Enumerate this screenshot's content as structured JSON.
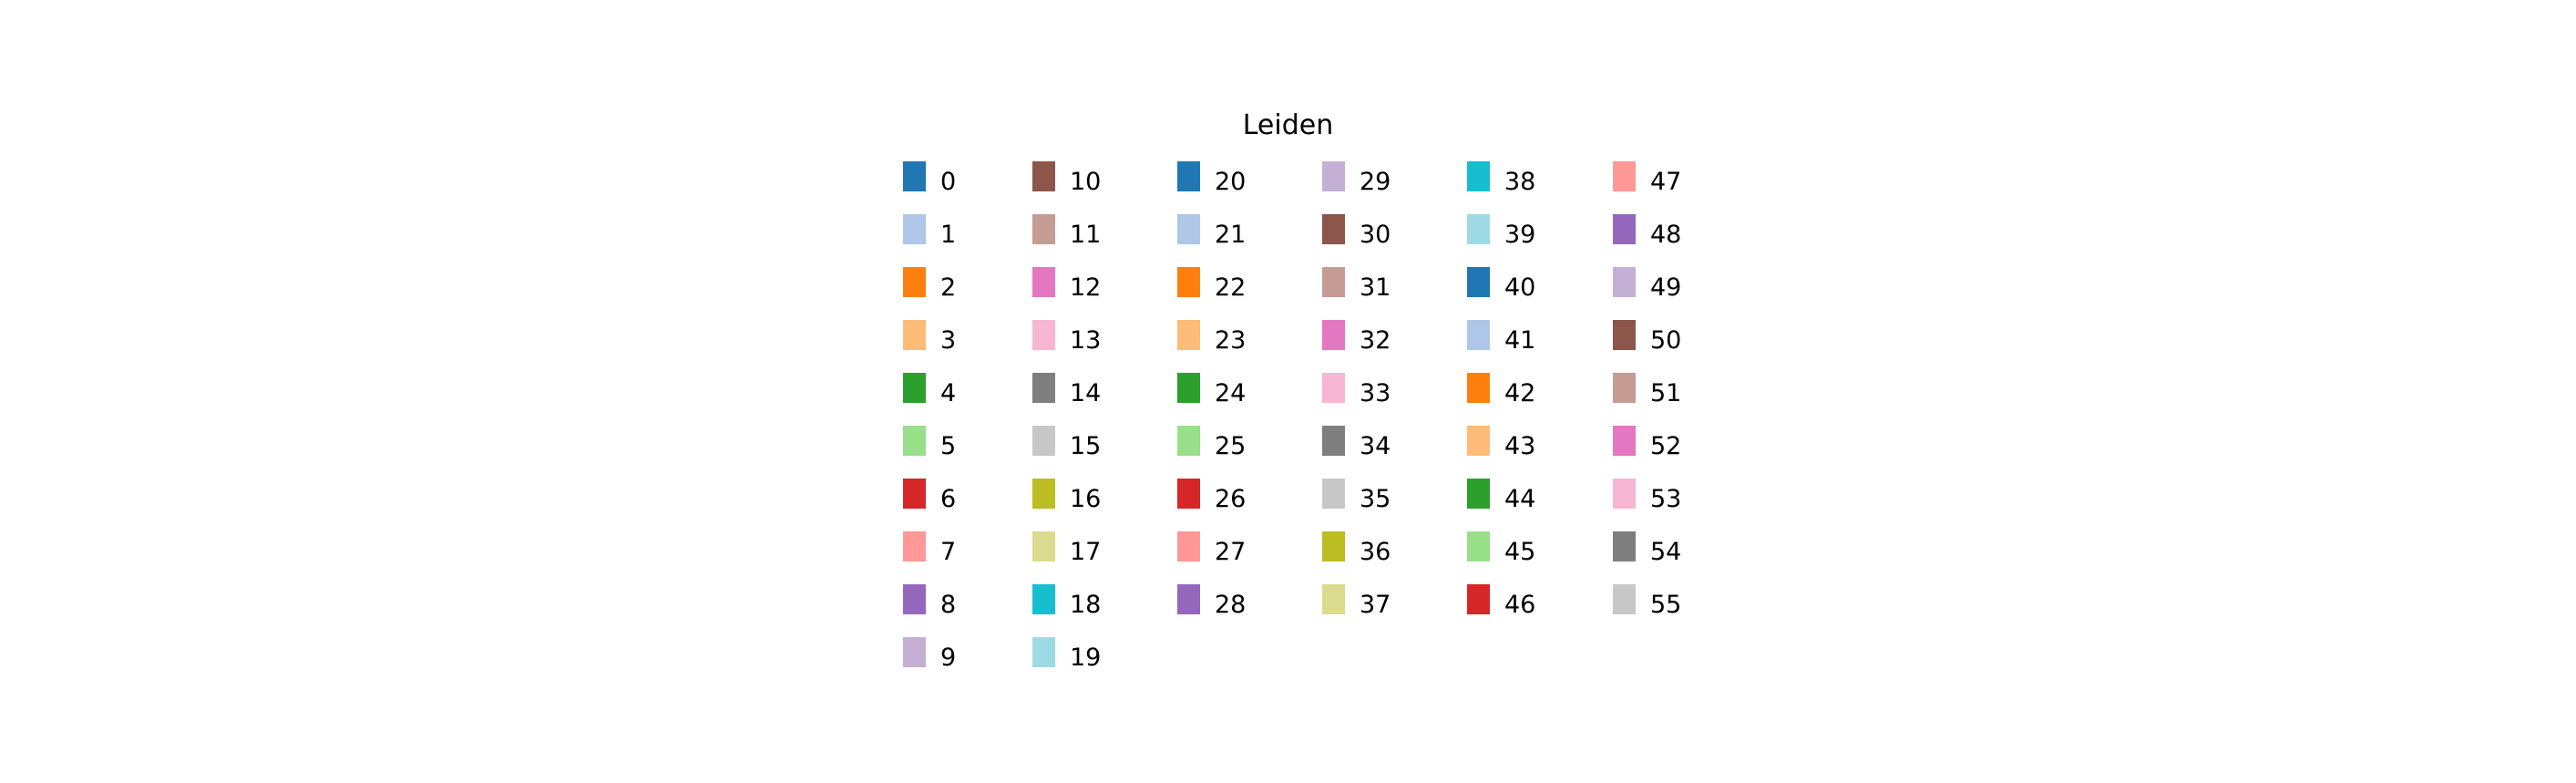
{
  "chart_data": {
    "type": "legend",
    "title": "Leiden",
    "ncols": 6,
    "entries": [
      {
        "label": "0",
        "color": "#1f77b4"
      },
      {
        "label": "1",
        "color": "#aec7e8"
      },
      {
        "label": "2",
        "color": "#ff7f0e"
      },
      {
        "label": "3",
        "color": "#ffbb78"
      },
      {
        "label": "4",
        "color": "#2ca02c"
      },
      {
        "label": "5",
        "color": "#98df8a"
      },
      {
        "label": "6",
        "color": "#d62728"
      },
      {
        "label": "7",
        "color": "#ff9896"
      },
      {
        "label": "8",
        "color": "#9467bd"
      },
      {
        "label": "9",
        "color": "#c5b0d5"
      },
      {
        "label": "10",
        "color": "#8c564b"
      },
      {
        "label": "11",
        "color": "#c49c94"
      },
      {
        "label": "12",
        "color": "#e377c2"
      },
      {
        "label": "13",
        "color": "#f7b6d2"
      },
      {
        "label": "14",
        "color": "#7f7f7f"
      },
      {
        "label": "15",
        "color": "#c7c7c7"
      },
      {
        "label": "16",
        "color": "#bcbd22"
      },
      {
        "label": "17",
        "color": "#dbdb8d"
      },
      {
        "label": "18",
        "color": "#17becf"
      },
      {
        "label": "19",
        "color": "#9edae5"
      },
      {
        "label": "20",
        "color": "#1f77b4"
      },
      {
        "label": "21",
        "color": "#aec7e8"
      },
      {
        "label": "22",
        "color": "#ff7f0e"
      },
      {
        "label": "23",
        "color": "#ffbb78"
      },
      {
        "label": "24",
        "color": "#2ca02c"
      },
      {
        "label": "25",
        "color": "#98df8a"
      },
      {
        "label": "26",
        "color": "#d62728"
      },
      {
        "label": "27",
        "color": "#ff9896"
      },
      {
        "label": "28",
        "color": "#9467bd"
      },
      {
        "label": "29",
        "color": "#c5b0d5"
      },
      {
        "label": "30",
        "color": "#8c564b"
      },
      {
        "label": "31",
        "color": "#c49c94"
      },
      {
        "label": "32",
        "color": "#e377c2"
      },
      {
        "label": "33",
        "color": "#f7b6d2"
      },
      {
        "label": "34",
        "color": "#7f7f7f"
      },
      {
        "label": "35",
        "color": "#c7c7c7"
      },
      {
        "label": "36",
        "color": "#bcbd22"
      },
      {
        "label": "37",
        "color": "#dbdb8d"
      },
      {
        "label": "38",
        "color": "#17becf"
      },
      {
        "label": "39",
        "color": "#9edae5"
      },
      {
        "label": "40",
        "color": "#1f77b4"
      },
      {
        "label": "41",
        "color": "#aec7e8"
      },
      {
        "label": "42",
        "color": "#ff7f0e"
      },
      {
        "label": "43",
        "color": "#ffbb78"
      },
      {
        "label": "44",
        "color": "#2ca02c"
      },
      {
        "label": "45",
        "color": "#98df8a"
      },
      {
        "label": "46",
        "color": "#d62728"
      },
      {
        "label": "47",
        "color": "#ff9896"
      },
      {
        "label": "48",
        "color": "#9467bd"
      },
      {
        "label": "49",
        "color": "#c5b0d5"
      },
      {
        "label": "50",
        "color": "#8c564b"
      },
      {
        "label": "51",
        "color": "#c49c94"
      },
      {
        "label": "52",
        "color": "#e377c2"
      },
      {
        "label": "53",
        "color": "#f7b6d2"
      },
      {
        "label": "54",
        "color": "#7f7f7f"
      },
      {
        "label": "55",
        "color": "#c7c7c7"
      }
    ]
  }
}
